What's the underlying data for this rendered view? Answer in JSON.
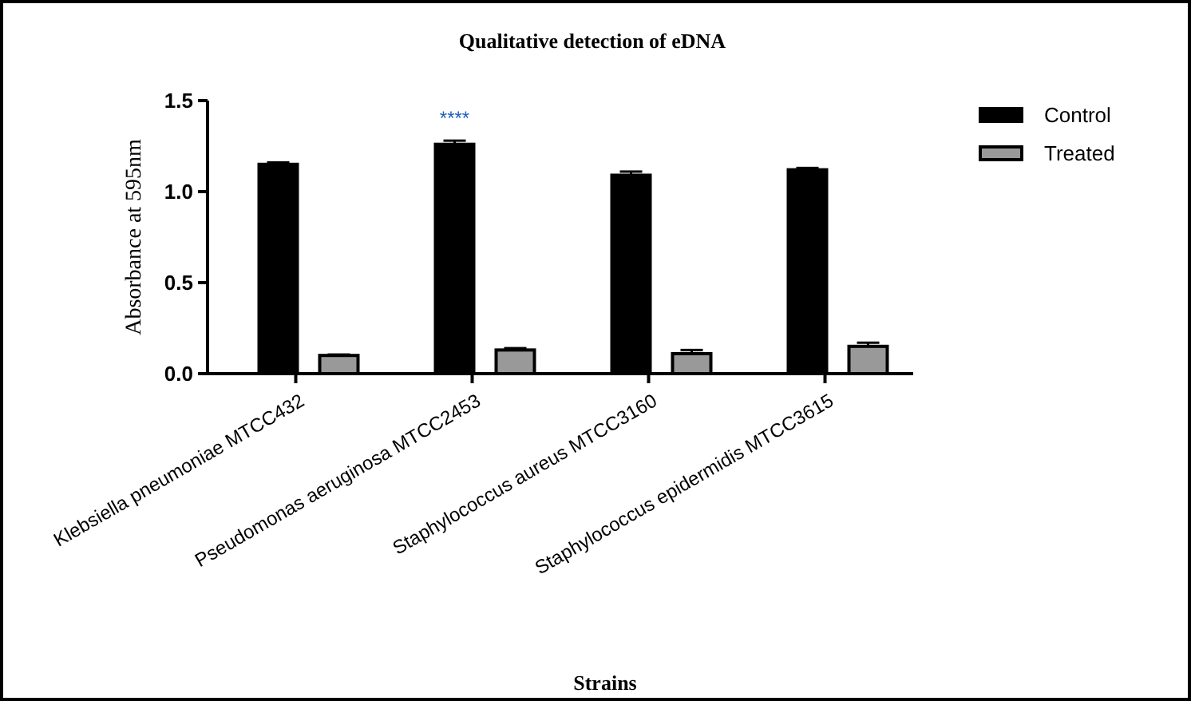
{
  "chart_data": {
    "type": "bar",
    "title": "Qualitative detection of eDNA",
    "xlabel": "Strains",
    "ylabel": "Absorbance at 595nm",
    "categories": [
      "Klebsiella pneumoniae MTCC432",
      "Pseudomonas aeruginosa MTCC2453",
      "Staphylococcus aureus MTCC3160",
      "Staphylococcus epidermidis MTCC3615"
    ],
    "series": [
      {
        "name": "Control",
        "color": "#000000",
        "values": [
          1.15,
          1.26,
          1.09,
          1.12
        ],
        "errors": [
          0.01,
          0.02,
          0.02,
          0.01
        ]
      },
      {
        "name": "Treated",
        "color": "#999999",
        "values": [
          0.1,
          0.13,
          0.11,
          0.15
        ],
        "errors": [
          0.005,
          0.01,
          0.02,
          0.02
        ]
      }
    ],
    "ylim": [
      0,
      1.5
    ],
    "yticks": [
      {
        "value": 0,
        "label": "0.0"
      },
      {
        "value": 0.5,
        "label": "0.5"
      },
      {
        "value": 1,
        "label": "1.0"
      },
      {
        "value": 1.5,
        "label": "1.5"
      }
    ],
    "annotations": [
      "****"
    ],
    "legend": "top right",
    "grid": false
  }
}
